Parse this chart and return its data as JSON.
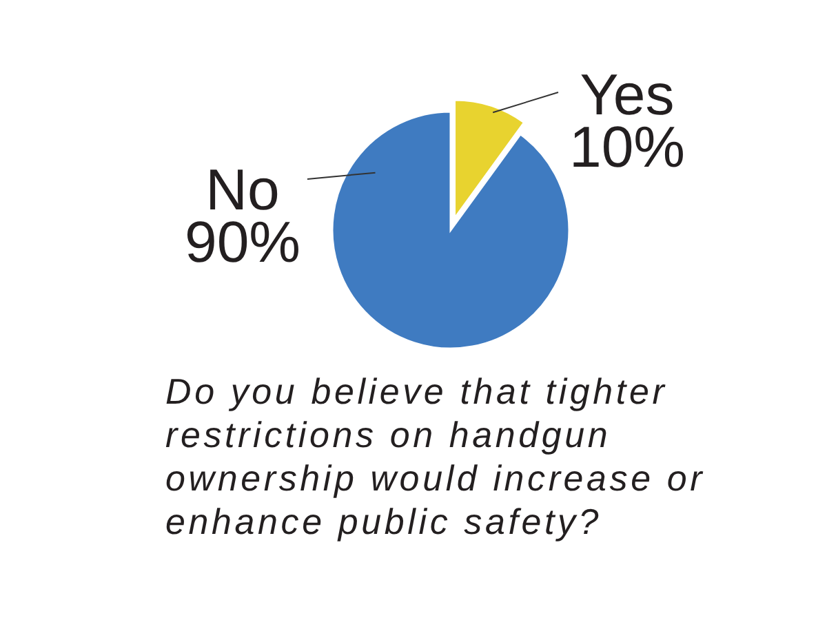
{
  "chart_data": {
    "type": "pie",
    "title": "Do you believe that tighter restrictions on handgun ownership would increase or enhance public safety?",
    "categories": [
      "Yes",
      "No"
    ],
    "values": [
      10,
      90
    ],
    "colors": [
      "#e8d32f",
      "#3f7bc1"
    ],
    "value_labels": [
      "10%",
      "90%"
    ]
  }
}
